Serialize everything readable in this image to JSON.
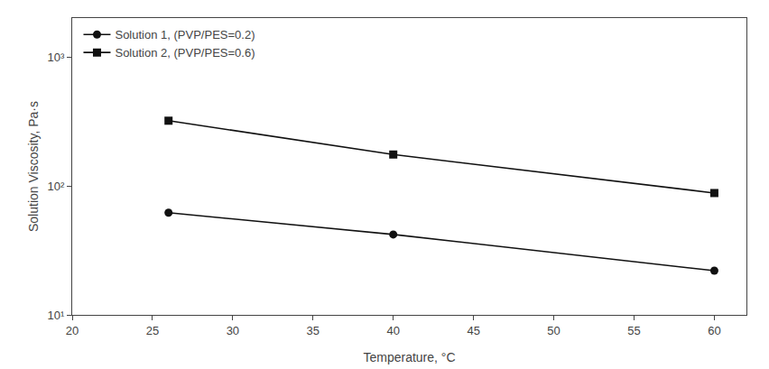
{
  "chart_data": {
    "type": "line",
    "x": [
      26,
      40,
      60
    ],
    "series": [
      {
        "name": "Solution 1, (PVP/PES=0.2)",
        "color": "#111111",
        "marker": "circle",
        "values": [
          62,
          42,
          22
        ]
      },
      {
        "name": "Solution 2, (PVP/PES=0.6)",
        "color": "#111111",
        "marker": "square",
        "values": [
          320,
          175,
          88
        ]
      }
    ],
    "xlabel": "Temperature, °C",
    "ylabel": "Solution Viscosity, Pa·s",
    "xlim": [
      20,
      62
    ],
    "ylim": [
      10,
      2000
    ],
    "xticks": [
      20,
      25,
      30,
      35,
      40,
      45,
      50,
      55,
      60
    ],
    "yticks": [
      {
        "value": 10,
        "label": "10¹"
      },
      {
        "value": 100,
        "label": "10²"
      },
      {
        "value": 1000,
        "label": "10³"
      }
    ],
    "log": "y",
    "grid": false,
    "legend": "upper left"
  }
}
